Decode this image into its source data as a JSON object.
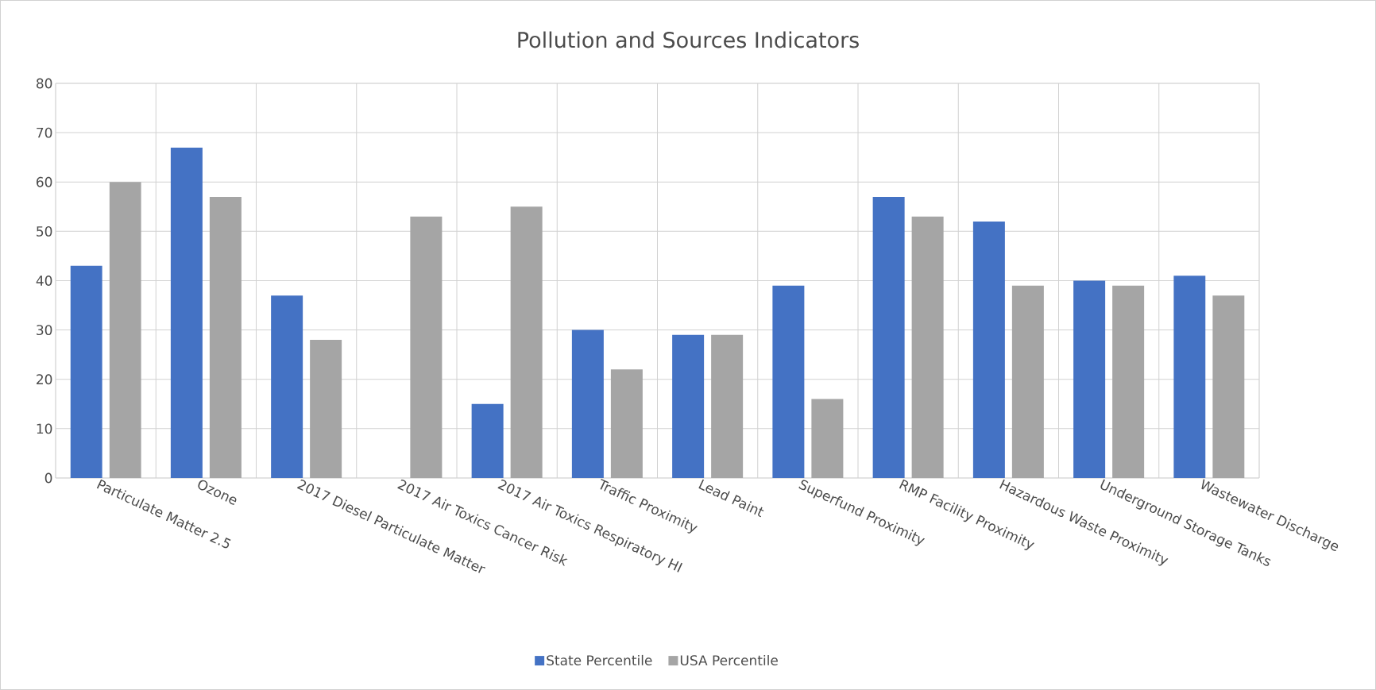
{
  "chart_data": {
    "type": "bar",
    "title": "Pollution and Sources Indicators",
    "categories": [
      "Particulate Matter 2.5",
      "Ozone",
      "2017 Diesel Particulate Matter",
      "2017 Air Toxics Cancer Risk",
      "2017 Air Toxics Respiratory HI",
      "Traffic Proximity",
      "Lead Paint",
      "Superfund Proximity",
      "RMP Facility Proximity",
      "Hazardous Waste Proximity",
      "Underground Storage Tanks",
      "Wastewater Discharge"
    ],
    "series": [
      {
        "name": "State Percentile",
        "color": "#4472c4",
        "values": [
          43,
          67,
          37,
          null,
          15,
          30,
          29,
          39,
          57,
          52,
          40,
          41
        ]
      },
      {
        "name": "USA Percentile",
        "color": "#a5a5a5",
        "values": [
          60,
          57,
          28,
          53,
          55,
          22,
          29,
          16,
          53,
          39,
          39,
          37
        ]
      }
    ],
    "ylim": [
      0,
      80
    ],
    "yticks": [
      0,
      10,
      20,
      30,
      40,
      50,
      60,
      70,
      80
    ],
    "grid": true,
    "legend": "bottom"
  }
}
